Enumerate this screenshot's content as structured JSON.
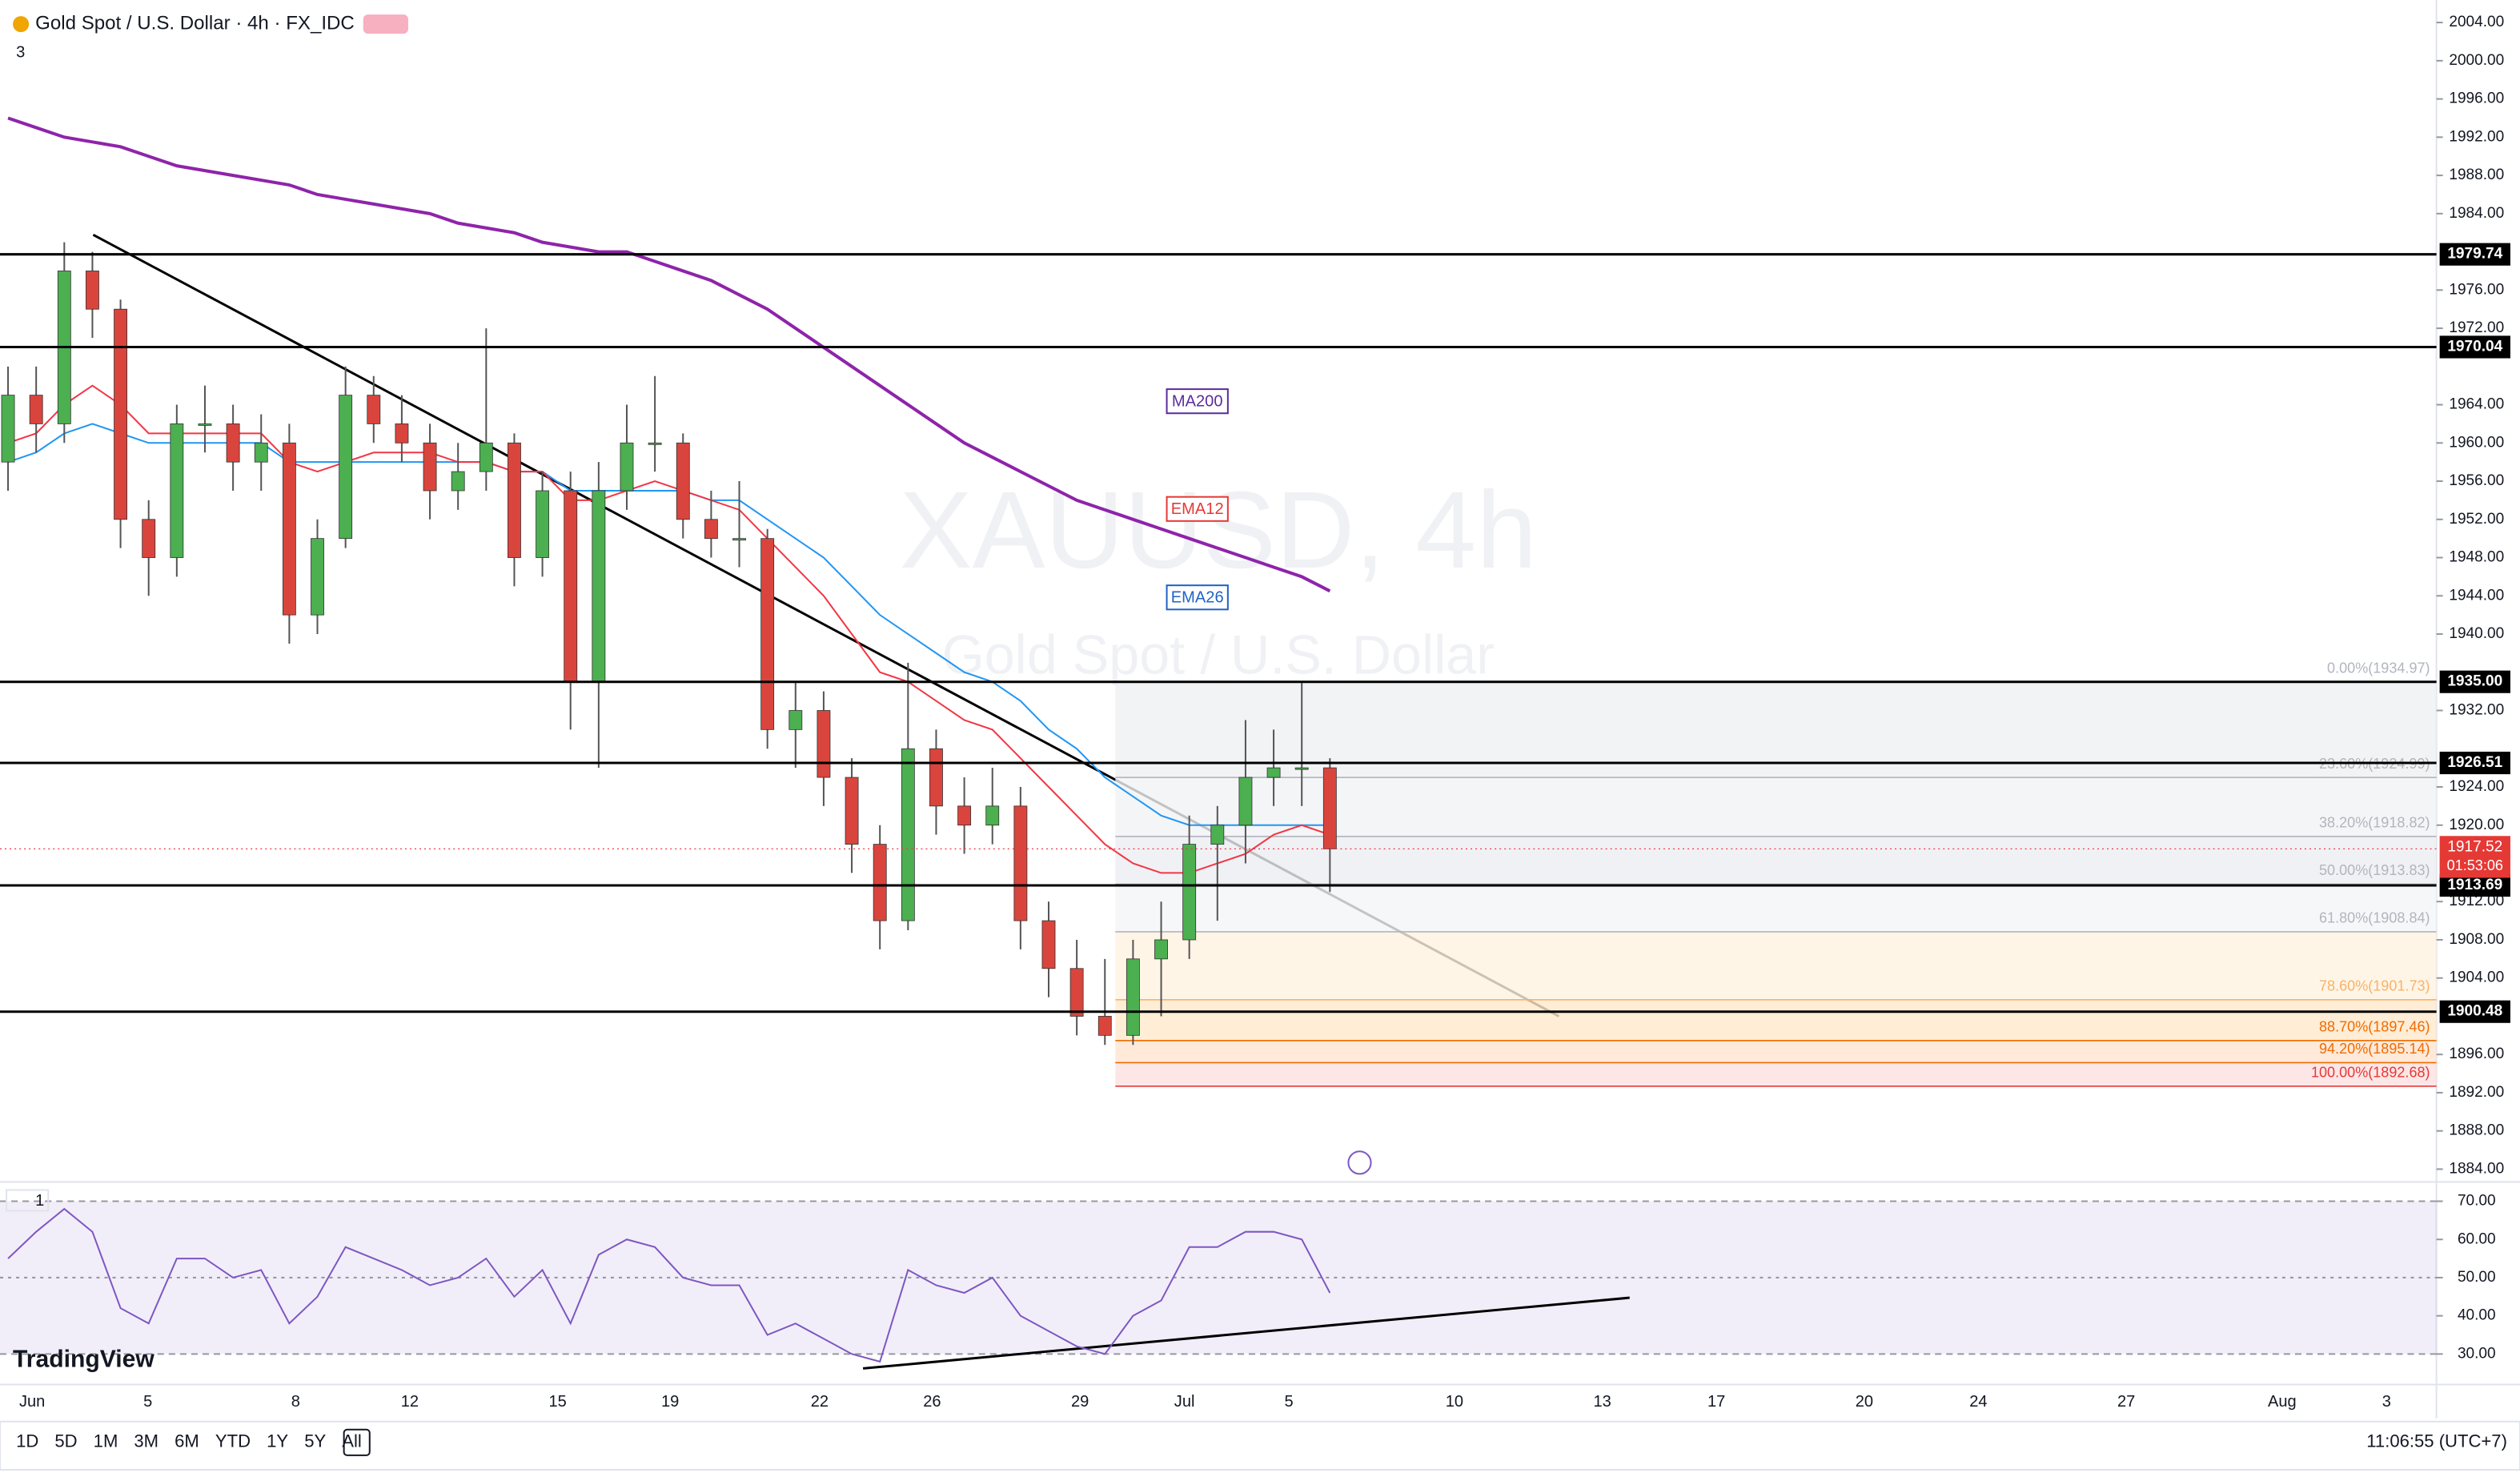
{
  "header": {
    "symbol": "Gold Spot / U.S. Dollar · 4h · FX_IDC",
    "pane_count": "3",
    "rsi_pane_count": "1"
  },
  "watermark": {
    "ticker": "XAUUSD, 4h",
    "name": "Gold Spot / U.S. Dollar"
  },
  "indicators": {
    "ma200": "MA200",
    "ema12": "EMA12",
    "ema26": "EMA26"
  },
  "logo": "TradingView",
  "price_axis": {
    "ticks": [
      {
        "value": 2004,
        "label": "2004.00"
      },
      {
        "value": 2000,
        "label": "2000.00"
      },
      {
        "value": 1996,
        "label": "1996.00"
      },
      {
        "value": 1992,
        "label": "1992.00"
      },
      {
        "value": 1988,
        "label": "1988.00"
      },
      {
        "value": 1984,
        "label": "1984.00"
      },
      {
        "value": 1976,
        "label": "1976.00"
      },
      {
        "value": 1972,
        "label": "1972.00"
      },
      {
        "value": 1964,
        "label": "1964.00"
      },
      {
        "value": 1960,
        "label": "1960.00"
      },
      {
        "value": 1956,
        "label": "1956.00"
      },
      {
        "value": 1952,
        "label": "1952.00"
      },
      {
        "value": 1948,
        "label": "1948.00"
      },
      {
        "value": 1944,
        "label": "1944.00"
      },
      {
        "value": 1940,
        "label": "1940.00"
      },
      {
        "value": 1932,
        "label": "1932.00"
      },
      {
        "value": 1924,
        "label": "1924.00"
      },
      {
        "value": 1920,
        "label": "1920.00"
      },
      {
        "value": 1912,
        "label": "1912.00"
      },
      {
        "value": 1908,
        "label": "1908.00"
      },
      {
        "value": 1904,
        "label": "1904.00"
      },
      {
        "value": 1896,
        "label": "1896.00"
      },
      {
        "value": 1892,
        "label": "1892.00"
      },
      {
        "value": 1888,
        "label": "1888.00"
      },
      {
        "value": 1884,
        "label": "1884.00"
      }
    ]
  },
  "rsi_axis": {
    "ticks": [
      {
        "value": 70,
        "label": "70.00"
      },
      {
        "value": 60,
        "label": "60.00"
      },
      {
        "value": 50,
        "label": "50.00"
      },
      {
        "value": 40,
        "label": "40.00"
      },
      {
        "value": 30,
        "label": "30.00"
      }
    ]
  },
  "levels": [
    {
      "value": 1979.74,
      "label": "1979.74"
    },
    {
      "value": 1970.04,
      "label": "1970.04"
    },
    {
      "value": 1935,
      "label": "1935.00"
    },
    {
      "value": 1926.51,
      "label": "1926.51"
    },
    {
      "value": 1913.69,
      "label": "1913.69"
    },
    {
      "value": 1900.48,
      "label": "1900.48"
    }
  ],
  "current_price": {
    "value": 1917.52,
    "label": "1917.52",
    "countdown": "01:53:06"
  },
  "fib": [
    {
      "price": 1934.97,
      "label": "0.00%(1934.97)"
    },
    {
      "price": 1924.99,
      "label": "23.60%(1924.99)"
    },
    {
      "price": 1918.82,
      "label": "38.20%(1918.82)"
    },
    {
      "price": 1913.83,
      "label": "50.00%(1913.83)"
    },
    {
      "price": 1908.84,
      "label": "61.80%(1908.84)"
    },
    {
      "price": 1901.73,
      "label": "78.60%(1901.73)"
    },
    {
      "price": 1897.46,
      "label": "88.70%(1897.46)"
    },
    {
      "price": 1895.14,
      "label": "94.20%(1895.14)"
    },
    {
      "price": 1892.68,
      "label": "100.00%(1892.68)"
    }
  ],
  "candles": [
    [
      1958,
      1968,
      1955,
      1965
    ],
    [
      1965,
      1968,
      1959,
      1962
    ],
    [
      1962,
      1981,
      1960,
      1978
    ],
    [
      1978,
      1980,
      1971,
      1974
    ],
    [
      1974,
      1975,
      1949,
      1952
    ],
    [
      1952,
      1954,
      1944,
      1948
    ],
    [
      1948,
      1964,
      1946,
      1962
    ],
    [
      1962,
      1966,
      1959,
      1962
    ],
    [
      1962,
      1964,
      1955,
      1958
    ],
    [
      1958,
      1963,
      1955,
      1960
    ],
    [
      1960,
      1962,
      1939,
      1942
    ],
    [
      1942,
      1952,
      1940,
      1950
    ],
    [
      1950,
      1968,
      1949,
      1965
    ],
    [
      1965,
      1967,
      1960,
      1962
    ],
    [
      1962,
      1965,
      1958,
      1960
    ],
    [
      1960,
      1962,
      1952,
      1955
    ],
    [
      1955,
      1960,
      1953,
      1957
    ],
    [
      1957,
      1972,
      1955,
      1960
    ],
    [
      1960,
      1961,
      1945,
      1948
    ],
    [
      1948,
      1957,
      1946,
      1955
    ],
    [
      1955,
      1957,
      1930,
      1935
    ],
    [
      1935,
      1958,
      1926,
      1955
    ],
    [
      1955,
      1964,
      1953,
      1960
    ],
    [
      1960,
      1967,
      1957,
      1960
    ],
    [
      1960,
      1961,
      1950,
      1952
    ],
    [
      1952,
      1955,
      1948,
      1950
    ],
    [
      1950,
      1956,
      1947,
      1950
    ],
    [
      1950,
      1951,
      1928,
      1930
    ],
    [
      1930,
      1935,
      1926,
      1932
    ],
    [
      1932,
      1934,
      1922,
      1925
    ],
    [
      1925,
      1927,
      1915,
      1918
    ],
    [
      1918,
      1920,
      1907,
      1910
    ],
    [
      1910,
      1937,
      1909,
      1928
    ],
    [
      1928,
      1930,
      1919,
      1922
    ],
    [
      1922,
      1925,
      1917,
      1920
    ],
    [
      1920,
      1926,
      1918,
      1922
    ],
    [
      1922,
      1924,
      1907,
      1910
    ],
    [
      1910,
      1912,
      1902,
      1905
    ],
    [
      1905,
      1908,
      1898,
      1900
    ],
    [
      1900,
      1906,
      1897,
      1898
    ],
    [
      1898,
      1908,
      1897,
      1906
    ],
    [
      1906,
      1912,
      1900,
      1908
    ],
    [
      1908,
      1921,
      1906,
      1918
    ],
    [
      1918,
      1922,
      1910,
      1920
    ],
    [
      1920,
      1931,
      1916,
      1925
    ],
    [
      1925,
      1930,
      1922,
      1926
    ],
    [
      1926,
      1935,
      1922,
      1926
    ],
    [
      1926,
      1927,
      1913,
      1917.52
    ]
  ],
  "ma200": [
    1994,
    1993,
    1992,
    1991.5,
    1991,
    1990,
    1989,
    1988.5,
    1988,
    1987.5,
    1987,
    1986,
    1985.5,
    1985,
    1984.5,
    1984,
    1983,
    1982.5,
    1982,
    1981,
    1980.5,
    1980,
    1980,
    1979,
    1978,
    1977,
    1975.5,
    1974,
    1972,
    1970,
    1968,
    1966,
    1964,
    1962,
    1960,
    1958.5,
    1957,
    1955.5,
    1954,
    1953,
    1952,
    1951,
    1950,
    1949,
    1948,
    1947,
    1946,
    1944.5
  ],
  "ema12": [
    1960,
    1961,
    1964,
    1966,
    1964,
    1961,
    1961,
    1961,
    1961,
    1961,
    1958,
    1957,
    1958,
    1959,
    1959,
    1959,
    1958,
    1958,
    1957,
    1957,
    1954,
    1954,
    1955,
    1956,
    1955,
    1954,
    1953,
    1950,
    1947,
    1944,
    1940,
    1936,
    1935,
    1933,
    1931,
    1930,
    1927,
    1924,
    1921,
    1918,
    1916,
    1915,
    1915,
    1916,
    1917,
    1919,
    1920,
    1919
  ],
  "ema26": [
    1958,
    1959,
    1961,
    1962,
    1961,
    1960,
    1960,
    1960,
    1960,
    1960,
    1958,
    1958,
    1958,
    1958,
    1958,
    1958,
    1958,
    1958,
    1957,
    1957,
    1955,
    1955,
    1955,
    1955,
    1955,
    1954,
    1954,
    1952,
    1950,
    1948,
    1945,
    1942,
    1940,
    1938,
    1936,
    1935,
    1933,
    1930,
    1928,
    1925,
    1923,
    1921,
    1920,
    1920,
    1920,
    1920,
    1920,
    1920
  ],
  "rsi": [
    55,
    62,
    68,
    62,
    42,
    38,
    55,
    55,
    50,
    52,
    38,
    45,
    58,
    55,
    52,
    48,
    50,
    55,
    45,
    52,
    38,
    56,
    60,
    58,
    50,
    48,
    48,
    35,
    38,
    34,
    30,
    28,
    52,
    48,
    46,
    50,
    40,
    36,
    32,
    30,
    40,
    44,
    58,
    58,
    62,
    62,
    60,
    46
  ],
  "time_axis": [
    "Jun",
    "5",
    "8",
    "12",
    "15",
    "19",
    "22",
    "26",
    "29",
    "Jul",
    "5",
    "10",
    "13",
    "17",
    "20",
    "24",
    "27",
    "Aug",
    "3"
  ],
  "toolbar": {
    "ranges": [
      "1D",
      "5D",
      "1M",
      "3M",
      "6M",
      "YTD",
      "1Y",
      "5Y",
      "All"
    ],
    "clock": "11:06:55 (UTC+7)"
  }
}
